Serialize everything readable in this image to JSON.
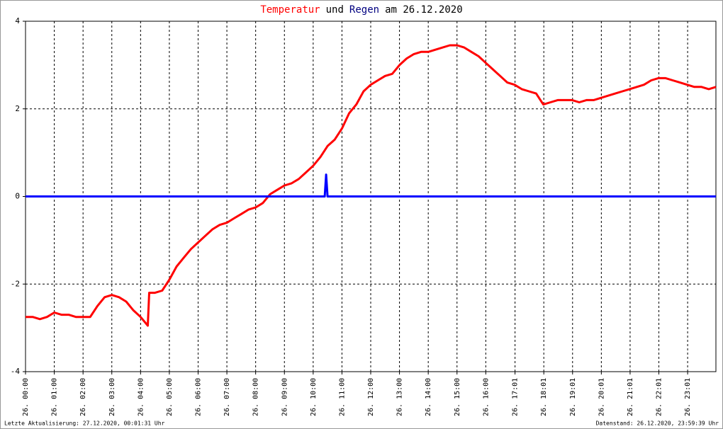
{
  "chart_data": {
    "type": "line",
    "title_parts": [
      {
        "text": "Temperatur",
        "color": "#ff0000"
      },
      {
        "text": "und",
        "color": "#000000"
      },
      {
        "text": "Regen",
        "color": "#000080"
      },
      {
        "text": "am 26.12.2020",
        "color": "#000000"
      }
    ],
    "footer_left": "Letzte Aktualisierung: 27.12.2020, 00:01:31 Uhr",
    "footer_right": "Datenstand: 26.12.2020, 23:59:39 Uhr",
    "xlim": [
      0,
      24
    ],
    "ylim": [
      -4,
      4
    ],
    "yticks": [
      -4,
      -2,
      0,
      2,
      4
    ],
    "grid": true,
    "xticks": [
      {
        "value": 0,
        "label": "26. 00:00"
      },
      {
        "value": 1,
        "label": "26. 01:00"
      },
      {
        "value": 2,
        "label": "26. 02:00"
      },
      {
        "value": 3,
        "label": "26. 03:00"
      },
      {
        "value": 4,
        "label": "26. 04:00"
      },
      {
        "value": 5,
        "label": "26. 05:00"
      },
      {
        "value": 6,
        "label": "26. 06:00"
      },
      {
        "value": 7,
        "label": "26. 07:00"
      },
      {
        "value": 8,
        "label": "26. 08:00"
      },
      {
        "value": 9,
        "label": "26. 09:00"
      },
      {
        "value": 10,
        "label": "26. 10:00"
      },
      {
        "value": 11,
        "label": "26. 11:00"
      },
      {
        "value": 12,
        "label": "26. 12:00"
      },
      {
        "value": 13,
        "label": "26. 13:00"
      },
      {
        "value": 14,
        "label": "26. 14:00"
      },
      {
        "value": 15,
        "label": "26. 15:00"
      },
      {
        "value": 16,
        "label": "26. 16:00"
      },
      {
        "value": 17.017,
        "label": "26. 17:01"
      },
      {
        "value": 18.017,
        "label": "26. 18:01"
      },
      {
        "value": 19.017,
        "label": "26. 19:01"
      },
      {
        "value": 20.017,
        "label": "26. 20:01"
      },
      {
        "value": 21.017,
        "label": "26. 21:01"
      },
      {
        "value": 22.017,
        "label": "26. 22:01"
      },
      {
        "value": 23.017,
        "label": "26. 23:01"
      }
    ],
    "series": [
      {
        "name": "Temperatur",
        "color": "#ff0000",
        "x": [
          0,
          0.25,
          0.5,
          0.75,
          1,
          1.25,
          1.5,
          1.75,
          2,
          2.25,
          2.5,
          2.75,
          3,
          3.25,
          3.5,
          3.75,
          4,
          4.25,
          4.3,
          4.5,
          4.75,
          5,
          5.25,
          5.5,
          5.75,
          6,
          6.25,
          6.5,
          6.75,
          7,
          7.25,
          7.5,
          7.75,
          8,
          8.25,
          8.5,
          8.75,
          9,
          9.25,
          9.5,
          9.75,
          10,
          10.25,
          10.5,
          10.75,
          11,
          11.25,
          11.5,
          11.75,
          12,
          12.25,
          12.5,
          12.75,
          13,
          13.25,
          13.5,
          13.75,
          14,
          14.25,
          14.5,
          14.75,
          15,
          15.25,
          15.5,
          15.75,
          16,
          16.25,
          16.5,
          16.75,
          17,
          17.25,
          17.5,
          17.75,
          18,
          18.25,
          18.5,
          18.75,
          19,
          19.25,
          19.5,
          19.75,
          20,
          20.25,
          20.5,
          20.75,
          21,
          21.25,
          21.5,
          21.75,
          22,
          22.25,
          22.5,
          22.75,
          23,
          23.25,
          23.5,
          23.75,
          24
        ],
        "values": [
          -2.75,
          -2.75,
          -2.8,
          -2.75,
          -2.65,
          -2.7,
          -2.7,
          -2.75,
          -2.75,
          -2.75,
          -2.5,
          -2.3,
          -2.25,
          -2.3,
          -2.4,
          -2.6,
          -2.75,
          -2.95,
          -2.2,
          -2.2,
          -2.15,
          -1.9,
          -1.6,
          -1.4,
          -1.2,
          -1.05,
          -0.9,
          -0.75,
          -0.65,
          -0.6,
          -0.5,
          -0.4,
          -0.3,
          -0.25,
          -0.15,
          0.05,
          0.15,
          0.25,
          0.3,
          0.4,
          0.55,
          0.7,
          0.9,
          1.15,
          1.3,
          1.55,
          1.9,
          2.1,
          2.4,
          2.55,
          2.65,
          2.75,
          2.8,
          3.0,
          3.15,
          3.25,
          3.3,
          3.3,
          3.35,
          3.4,
          3.45,
          3.45,
          3.4,
          3.3,
          3.2,
          3.05,
          2.9,
          2.75,
          2.6,
          2.55,
          2.45,
          2.4,
          2.35,
          2.1,
          2.15,
          2.2,
          2.2,
          2.2,
          2.15,
          2.2,
          2.2,
          2.25,
          2.3,
          2.35,
          2.4,
          2.45,
          2.5,
          2.55,
          2.65,
          2.7,
          2.7,
          2.65,
          2.6,
          2.55,
          2.5,
          2.5,
          2.45,
          2.5
        ]
      },
      {
        "name": "Regen",
        "color": "#0000ff",
        "x": [
          0,
          10.4,
          10.45,
          10.5,
          24
        ],
        "values": [
          0,
          0,
          0.5,
          0,
          0
        ]
      }
    ]
  }
}
